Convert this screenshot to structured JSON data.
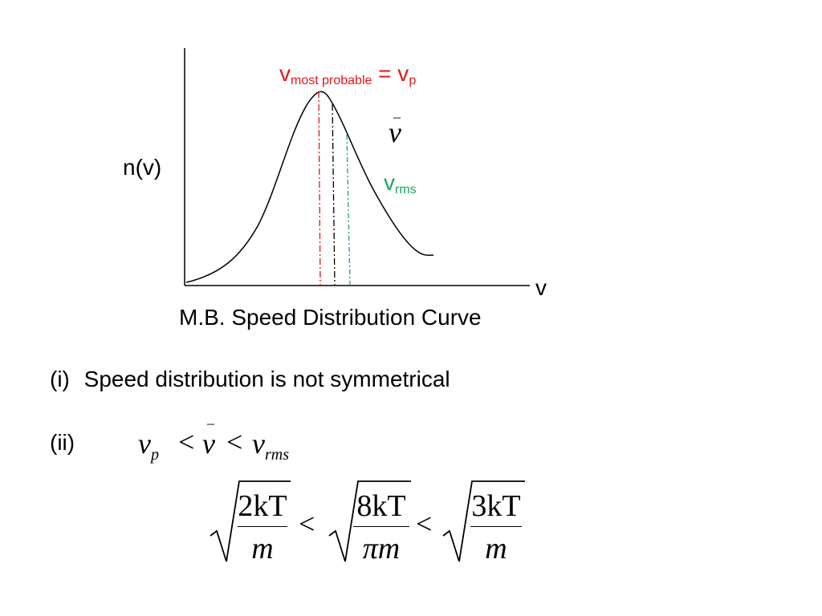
{
  "diagram": {
    "y_axis_label": "n(v)",
    "x_axis_label": "v",
    "caption": "M.B. Speed Distribution Curve",
    "v_most_probable": {
      "main": "v",
      "subscript": "most probable",
      "equals": "= v",
      "eq_subscript": "p",
      "color": "#e3161b"
    },
    "v_mean": {
      "main": "v",
      "bar": "_",
      "color": "#000000"
    },
    "v_rms": {
      "main": "v",
      "subscript": "rms",
      "color": "#1aa65a"
    },
    "curve_color": "#000000",
    "axis_color": "#000000"
  },
  "points": [
    {
      "label": "(i)",
      "text": "Speed distribution is not symmetrical"
    },
    {
      "label": "(ii)",
      "inequality": {
        "v1": "v",
        "v1_sub": "p",
        "lt1": "<",
        "v2": "v",
        "v2_bar": "_",
        "lt2": "<",
        "v3": "v",
        "v3_sub": "rms"
      }
    }
  ],
  "formula": {
    "term1": {
      "num": "2kT",
      "den": "m"
    },
    "lt1": "<",
    "term2": {
      "num": "8kT",
      "den": "πm"
    },
    "lt2": "<",
    "term3": {
      "num": "3kT",
      "den": "m"
    }
  }
}
